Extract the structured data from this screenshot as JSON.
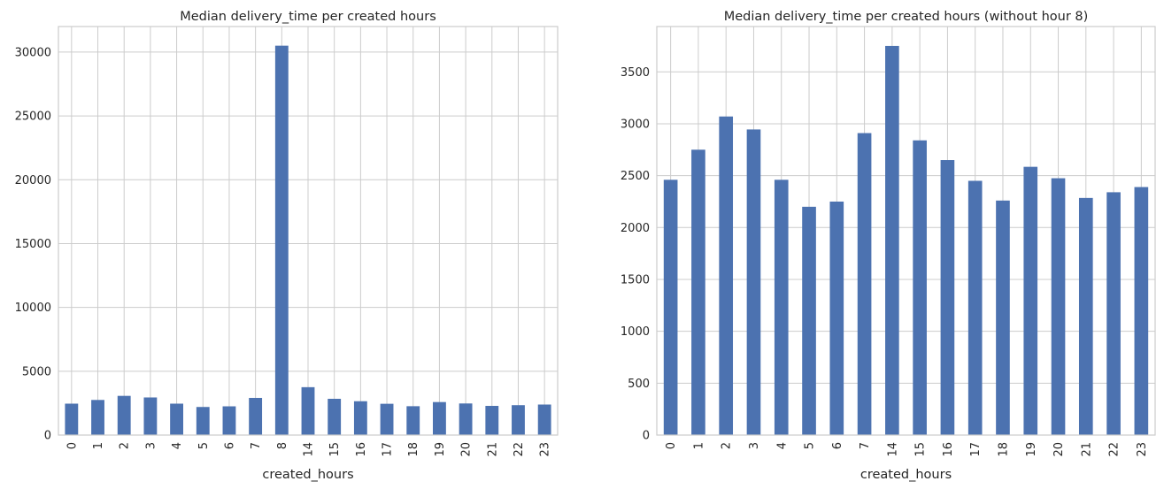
{
  "figure": {
    "background": "#ffffff"
  },
  "chart_data": [
    {
      "type": "bar",
      "title": "Median delivery_time per created hours",
      "xlabel": "created_hours",
      "ylabel": "",
      "categories": [
        "0",
        "1",
        "2",
        "3",
        "4",
        "5",
        "6",
        "7",
        "8",
        "14",
        "15",
        "16",
        "17",
        "18",
        "19",
        "20",
        "21",
        "22",
        "23"
      ],
      "values": [
        2460,
        2750,
        3070,
        2945,
        2460,
        2200,
        2250,
        2910,
        30500,
        3750,
        2840,
        2650,
        2450,
        2260,
        2585,
        2475,
        2285,
        2340,
        2390
      ],
      "ylim": [
        0,
        32000
      ],
      "yticks": [
        0,
        5000,
        10000,
        15000,
        20000,
        25000,
        30000
      ],
      "grid": true,
      "legend": "none",
      "bar_color": "#4c72b0",
      "grid_color": "#cccccc"
    },
    {
      "type": "bar",
      "title": "Median delivery_time per created hours (without hour 8)",
      "xlabel": "created_hours",
      "ylabel": "",
      "categories": [
        "0",
        "1",
        "2",
        "3",
        "4",
        "5",
        "6",
        "7",
        "14",
        "15",
        "16",
        "17",
        "18",
        "19",
        "20",
        "21",
        "22",
        "23"
      ],
      "values": [
        2460,
        2750,
        3070,
        2945,
        2460,
        2200,
        2250,
        2910,
        3750,
        2840,
        2650,
        2450,
        2260,
        2585,
        2475,
        2285,
        2340,
        2390
      ],
      "ylim": [
        0,
        3937
      ],
      "yticks": [
        0,
        500,
        1000,
        1500,
        2000,
        2500,
        3000,
        3500
      ],
      "grid": true,
      "legend": "none",
      "bar_color": "#4c72b0",
      "grid_color": "#cccccc"
    }
  ]
}
